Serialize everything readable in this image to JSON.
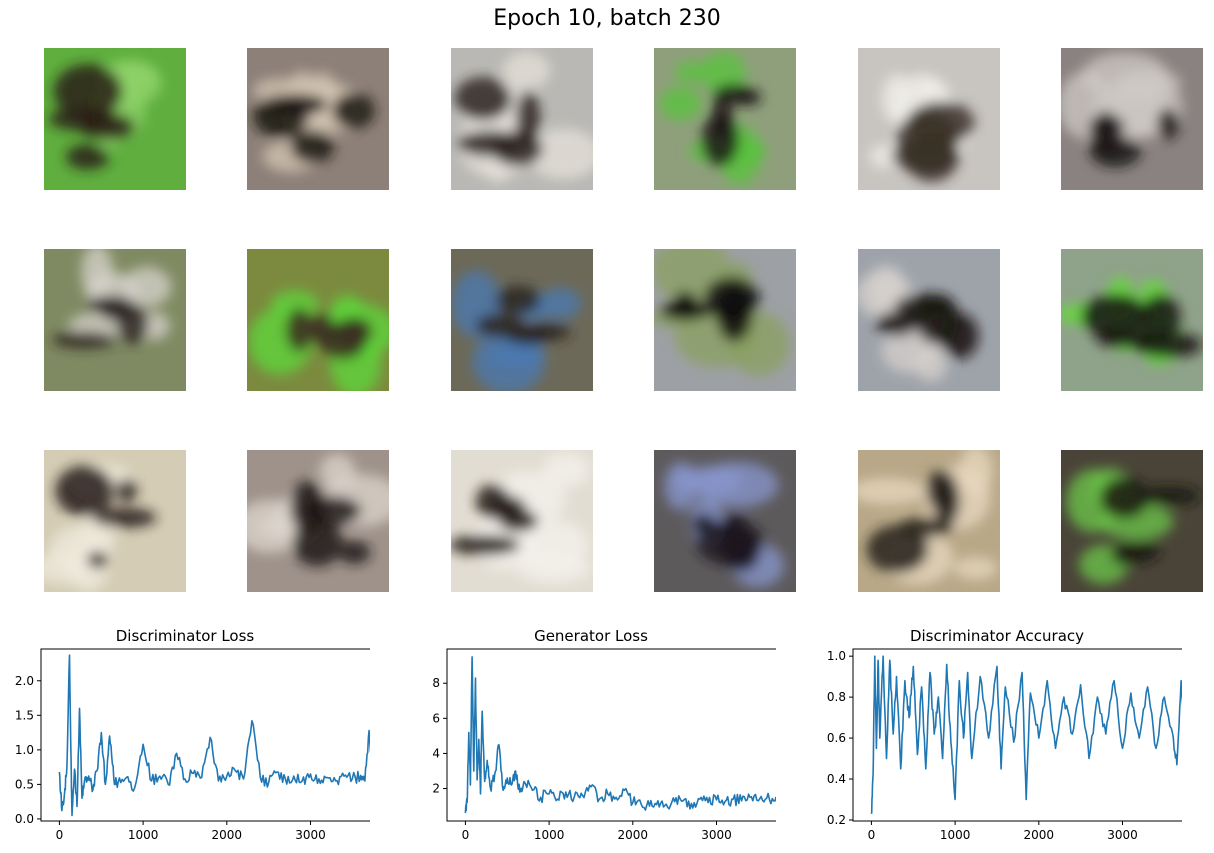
{
  "title": "Epoch 10, batch 230",
  "image_grid": {
    "rows": 3,
    "cols": 6,
    "tiles": [
      {
        "bg": "#5fae3e",
        "accent": "#2a1f14",
        "hi": "#8fd36a"
      },
      {
        "bg": "#8d8078",
        "accent": "#1b1512",
        "hi": "#d6c7b4"
      },
      {
        "bg": "#b9b8b4",
        "accent": "#2a2220",
        "hi": "#e6e2da"
      },
      {
        "bg": "#8f9f7c",
        "accent": "#1d1816",
        "hi": "#56c43a"
      },
      {
        "bg": "#c8c4c0",
        "accent": "#3a3028",
        "hi": "#f0ede8"
      },
      {
        "bg": "#8a8280",
        "accent": "#1b1516",
        "hi": "#cfcac5"
      },
      {
        "bg": "#7f8a62",
        "accent": "#2d2622",
        "hi": "#d8d4cf"
      },
      {
        "bg": "#7b8a3f",
        "accent": "#3a2c20",
        "hi": "#5ed83a"
      },
      {
        "bg": "#6c6958",
        "accent": "#2a2520",
        "hi": "#4a7ab4"
      },
      {
        "bg": "#9da0a4",
        "accent": "#0f0d0c",
        "hi": "#8aa060"
      },
      {
        "bg": "#9ea3aa",
        "accent": "#171312",
        "hi": "#d5d0cc"
      },
      {
        "bg": "#8fa28a",
        "accent": "#151210",
        "hi": "#62dc34"
      },
      {
        "bg": "#d4ccb4",
        "accent": "#231b16",
        "hi": "#efe9dc"
      },
      {
        "bg": "#9e928a",
        "accent": "#1f1714",
        "hi": "#ddd6ce"
      },
      {
        "bg": "#e2ddd2",
        "accent": "#1d1512",
        "hi": "#f4f1ec"
      },
      {
        "bg": "#5d5a5c",
        "accent": "#1c1820",
        "hi": "#8a98d0"
      },
      {
        "bg": "#b8a888",
        "accent": "#231d17",
        "hi": "#e8d8c0"
      },
      {
        "bg": "#4a4438",
        "accent": "#1a1612",
        "hi": "#6ec84a"
      }
    ]
  },
  "chart_data": [
    {
      "type": "line",
      "title": "Discriminator Loss",
      "xlabel": "",
      "ylabel": "",
      "xlim": [
        -220,
        3950
      ],
      "ylim": [
        -0.03,
        2.46
      ],
      "xticks": [
        0,
        1000,
        2000,
        3000
      ],
      "xtick_labels": [
        "0",
        "1000",
        "2000",
        "3000"
      ],
      "yticks": [
        0.0,
        0.5,
        1.0,
        1.5,
        2.0
      ],
      "ytick_labels": [
        "0.0",
        "0.5",
        "1.0",
        "1.5",
        "2.0"
      ],
      "grid": false,
      "color": "#1f77b4",
      "x": [
        0,
        30,
        60,
        90,
        120,
        150,
        180,
        210,
        240,
        270,
        300,
        350,
        400,
        450,
        500,
        550,
        600,
        650,
        700,
        800,
        900,
        1000,
        1100,
        1200,
        1300,
        1400,
        1500,
        1600,
        1700,
        1800,
        1900,
        2000,
        2100,
        2200,
        2300,
        2400,
        2500,
        2600,
        2700,
        2800,
        2900,
        3000,
        3100,
        3200,
        3300,
        3400,
        3500,
        3600,
        3650,
        3700,
        3750
      ],
      "y": [
        0.68,
        0.12,
        0.35,
        0.75,
        2.37,
        0.05,
        0.72,
        0.18,
        1.6,
        0.3,
        0.55,
        0.62,
        0.42,
        0.7,
        1.25,
        0.5,
        1.2,
        0.58,
        0.52,
        0.6,
        0.45,
        1.08,
        0.55,
        0.62,
        0.5,
        0.95,
        0.58,
        0.66,
        0.6,
        1.18,
        0.55,
        0.62,
        0.7,
        0.58,
        1.42,
        0.6,
        0.52,
        0.68,
        0.58,
        0.62,
        0.55,
        0.65,
        0.58,
        0.6,
        0.55,
        0.62,
        0.58,
        0.63,
        0.55,
        1.28,
        0.6
      ]
    },
    {
      "type": "line",
      "title": "Generator Loss",
      "xlabel": "",
      "ylabel": "",
      "xlim": [
        -220,
        3950
      ],
      "ylim": [
        0.15,
        9.95
      ],
      "xticks": [
        0,
        1000,
        2000,
        3000
      ],
      "xtick_labels": [
        "0",
        "1000",
        "2000",
        "3000"
      ],
      "yticks": [
        2,
        4,
        6,
        8
      ],
      "ytick_labels": [
        "2",
        "4",
        "6",
        "8"
      ],
      "grid": false,
      "color": "#1f77b4",
      "x": [
        0,
        20,
        40,
        60,
        80,
        100,
        120,
        140,
        160,
        180,
        200,
        230,
        260,
        300,
        350,
        400,
        450,
        500,
        550,
        600,
        650,
        700,
        800,
        900,
        1000,
        1100,
        1200,
        1300,
        1400,
        1500,
        1600,
        1700,
        1800,
        1900,
        2000,
        2100,
        2200,
        2300,
        2400,
        2500,
        2600,
        2700,
        2800,
        2900,
        3000,
        3100,
        3200,
        3300,
        3400,
        3500,
        3600,
        3700,
        3750
      ],
      "y": [
        0.6,
        1.2,
        5.2,
        2.2,
        9.5,
        3.0,
        8.3,
        2.5,
        4.8,
        1.7,
        6.4,
        2.4,
        3.6,
        2.0,
        2.8,
        4.5,
        1.9,
        2.6,
        2.2,
        3.0,
        1.8,
        2.4,
        1.9,
        1.5,
        1.7,
        1.4,
        1.8,
        1.5,
        1.6,
        2.1,
        1.4,
        1.7,
        1.5,
        1.9,
        1.2,
        1.1,
        1.0,
        1.3,
        1.1,
        1.25,
        1.3,
        1.15,
        1.4,
        1.2,
        1.35,
        1.25,
        1.4,
        1.3,
        1.5,
        1.3,
        1.45,
        1.3,
        1.2
      ]
    },
    {
      "type": "line",
      "title": "Discriminator Accuracy",
      "xlabel": "",
      "ylabel": "",
      "xlim": [
        -220,
        3950
      ],
      "ylim": [
        0.195,
        1.035
      ],
      "xticks": [
        0,
        1000,
        2000,
        3000
      ],
      "xtick_labels": [
        "0",
        "1000",
        "2000",
        "3000"
      ],
      "yticks": [
        0.2,
        0.4,
        0.6,
        0.8,
        1.0
      ],
      "ytick_labels": [
        "0.2",
        "0.4",
        "0.6",
        "0.8",
        "1.0"
      ],
      "grid": false,
      "color": "#1f77b4",
      "x": [
        0,
        20,
        40,
        60,
        80,
        100,
        140,
        180,
        220,
        260,
        300,
        350,
        400,
        450,
        500,
        550,
        600,
        650,
        700,
        750,
        800,
        850,
        900,
        950,
        1000,
        1050,
        1100,
        1150,
        1200,
        1300,
        1400,
        1500,
        1550,
        1600,
        1700,
        1800,
        1850,
        1900,
        2000,
        2100,
        2200,
        2300,
        2400,
        2500,
        2600,
        2700,
        2800,
        2900,
        3000,
        3100,
        3200,
        3300,
        3400,
        3500,
        3600,
        3650,
        3700,
        3750
      ],
      "y": [
        0.23,
        0.42,
        1.0,
        0.55,
        0.98,
        0.6,
        1.0,
        0.5,
        0.98,
        0.62,
        0.9,
        0.45,
        0.88,
        0.7,
        0.95,
        0.52,
        0.85,
        0.45,
        0.92,
        0.62,
        0.8,
        0.5,
        0.96,
        0.58,
        0.3,
        0.88,
        0.6,
        0.92,
        0.5,
        0.9,
        0.6,
        0.95,
        0.45,
        0.85,
        0.58,
        0.92,
        0.3,
        0.82,
        0.6,
        0.88,
        0.55,
        0.8,
        0.62,
        0.86,
        0.5,
        0.8,
        0.62,
        0.88,
        0.55,
        0.82,
        0.6,
        0.85,
        0.55,
        0.8,
        0.62,
        0.47,
        0.88,
        0.6
      ]
    }
  ]
}
